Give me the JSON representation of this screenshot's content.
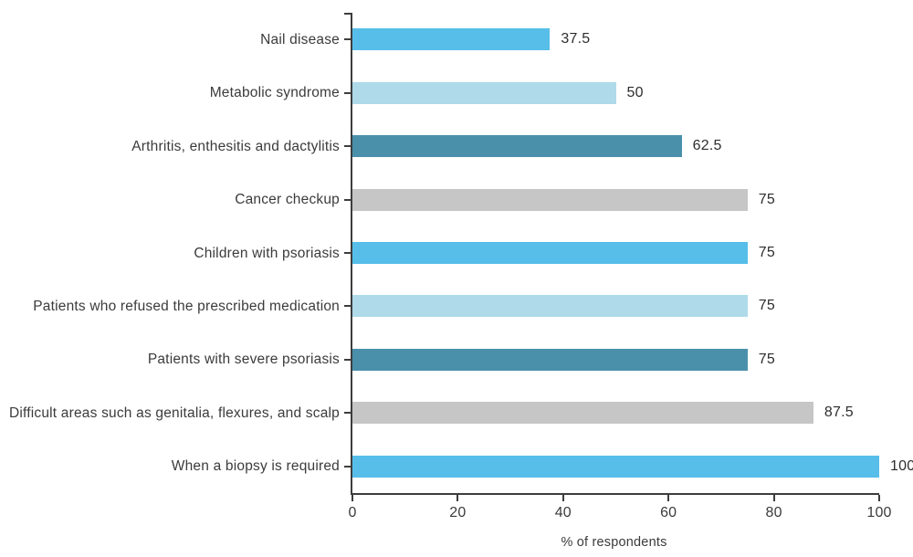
{
  "chart_data": {
    "type": "bar",
    "orientation": "horizontal",
    "categories": [
      "Nail disease",
      "Metabolic syndrome",
      "Arthritis, enthesitis and dactylitis",
      "Cancer checkup",
      "Children with psoriasis",
      "Patients who refused the prescribed medication",
      "Patients with severe psoriasis",
      "Difficult areas such as genitalia, flexures, and scalp",
      "When a biopsy is required"
    ],
    "values": [
      37.5,
      50,
      62.5,
      75,
      75,
      75,
      75,
      87.5,
      100
    ],
    "value_labels": [
      "37.5",
      "50",
      "62.5",
      "75",
      "75",
      "75",
      "75",
      "87.5",
      "100"
    ],
    "bar_colors": [
      "#57BEE9",
      "#AEDAE9",
      "#4A90AB",
      "#C6C6C6",
      "#57BEE9",
      "#AEDAE9",
      "#4A90AB",
      "#C6C6C6",
      "#57BEE9"
    ],
    "xlabel": "% of respondents",
    "xlim": [
      0,
      100
    ],
    "x_ticks": [
      "0",
      "20",
      "40",
      "60",
      "80",
      "100"
    ],
    "grid": false,
    "legend": false,
    "axis_color": "#3d3d3d",
    "text_color": "#3b3b3b",
    "value_text_color": "#2d2d2d",
    "background_color": "#ffffff"
  }
}
